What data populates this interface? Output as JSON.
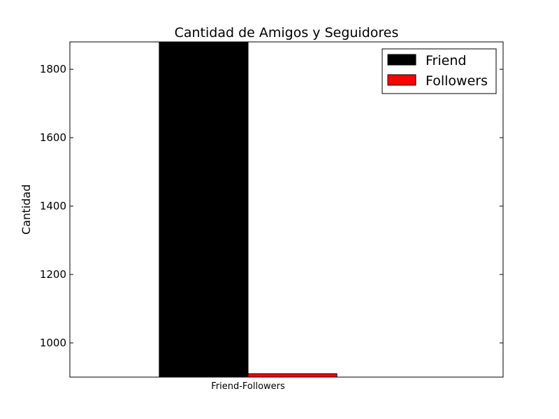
{
  "chart_data": {
    "type": "bar",
    "title": "Cantidad de Amigos y Seguidores",
    "xlabel": "",
    "ylabel": "Cantidad",
    "categories": [
      "Friend-Followers"
    ],
    "series": [
      {
        "name": "Friend",
        "values": [
          1880
        ],
        "color": "#000000"
      },
      {
        "name": "Followers",
        "values": [
          910
        ],
        "color": "#ff0000"
      }
    ],
    "ylim": [
      900,
      1880
    ],
    "yticks": [
      1000,
      1200,
      1400,
      1600,
      1800
    ],
    "grid": false,
    "legend_position": "top-right"
  }
}
